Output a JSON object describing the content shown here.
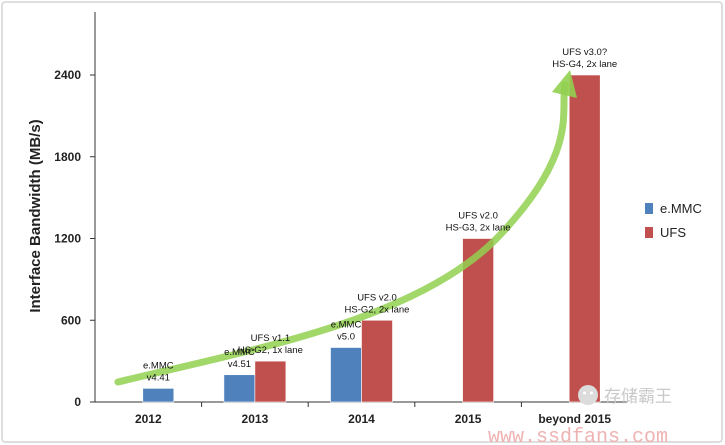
{
  "chart_data": {
    "type": "bar",
    "categories": [
      "2012",
      "2013",
      "2014",
      "2015",
      "beyond 2015"
    ],
    "series": [
      {
        "name": "e.MMC",
        "values": [
          100,
          200,
          400,
          null,
          null
        ],
        "color": "#4f81bd"
      },
      {
        "name": "UFS",
        "values": [
          null,
          300,
          600,
          1200,
          2400
        ],
        "color": "#c0504d"
      }
    ],
    "ylabel": "Interface Bandwidth (MB/s)",
    "xlabel": "",
    "ylim": [
      0,
      2800
    ],
    "yticks": [
      0,
      600,
      1200,
      1800,
      2400
    ],
    "grid": false,
    "legend": "right",
    "trend_arrow_color": "#92d050",
    "annotations": [
      {
        "category": "2012",
        "series": "e.MMC",
        "lines": [
          "e.MMC",
          "v4.41"
        ]
      },
      {
        "category": "2013",
        "series": "e.MMC",
        "lines": [
          "e.MMC",
          "v4.51"
        ]
      },
      {
        "category": "2013",
        "series": "UFS",
        "lines": [
          "UFS v1.1",
          "HS-G2, 1x lane"
        ]
      },
      {
        "category": "2014",
        "series": "e.MMC",
        "lines": [
          "e.MMC",
          "v5.0"
        ]
      },
      {
        "category": "2014",
        "series": "UFS",
        "lines": [
          "UFS v2.0",
          "HS-G2, 2x lane"
        ]
      },
      {
        "category": "2015",
        "series": "UFS",
        "lines": [
          "UFS v2.0",
          "HS-G3, 2x lane"
        ]
      },
      {
        "category": "beyond 2015",
        "series": "UFS",
        "lines": [
          "UFS v3.0?",
          "HS-G4, 2x lane"
        ]
      }
    ]
  },
  "watermark": {
    "name": "存储霸王",
    "site": "www.ssdfans.com"
  }
}
